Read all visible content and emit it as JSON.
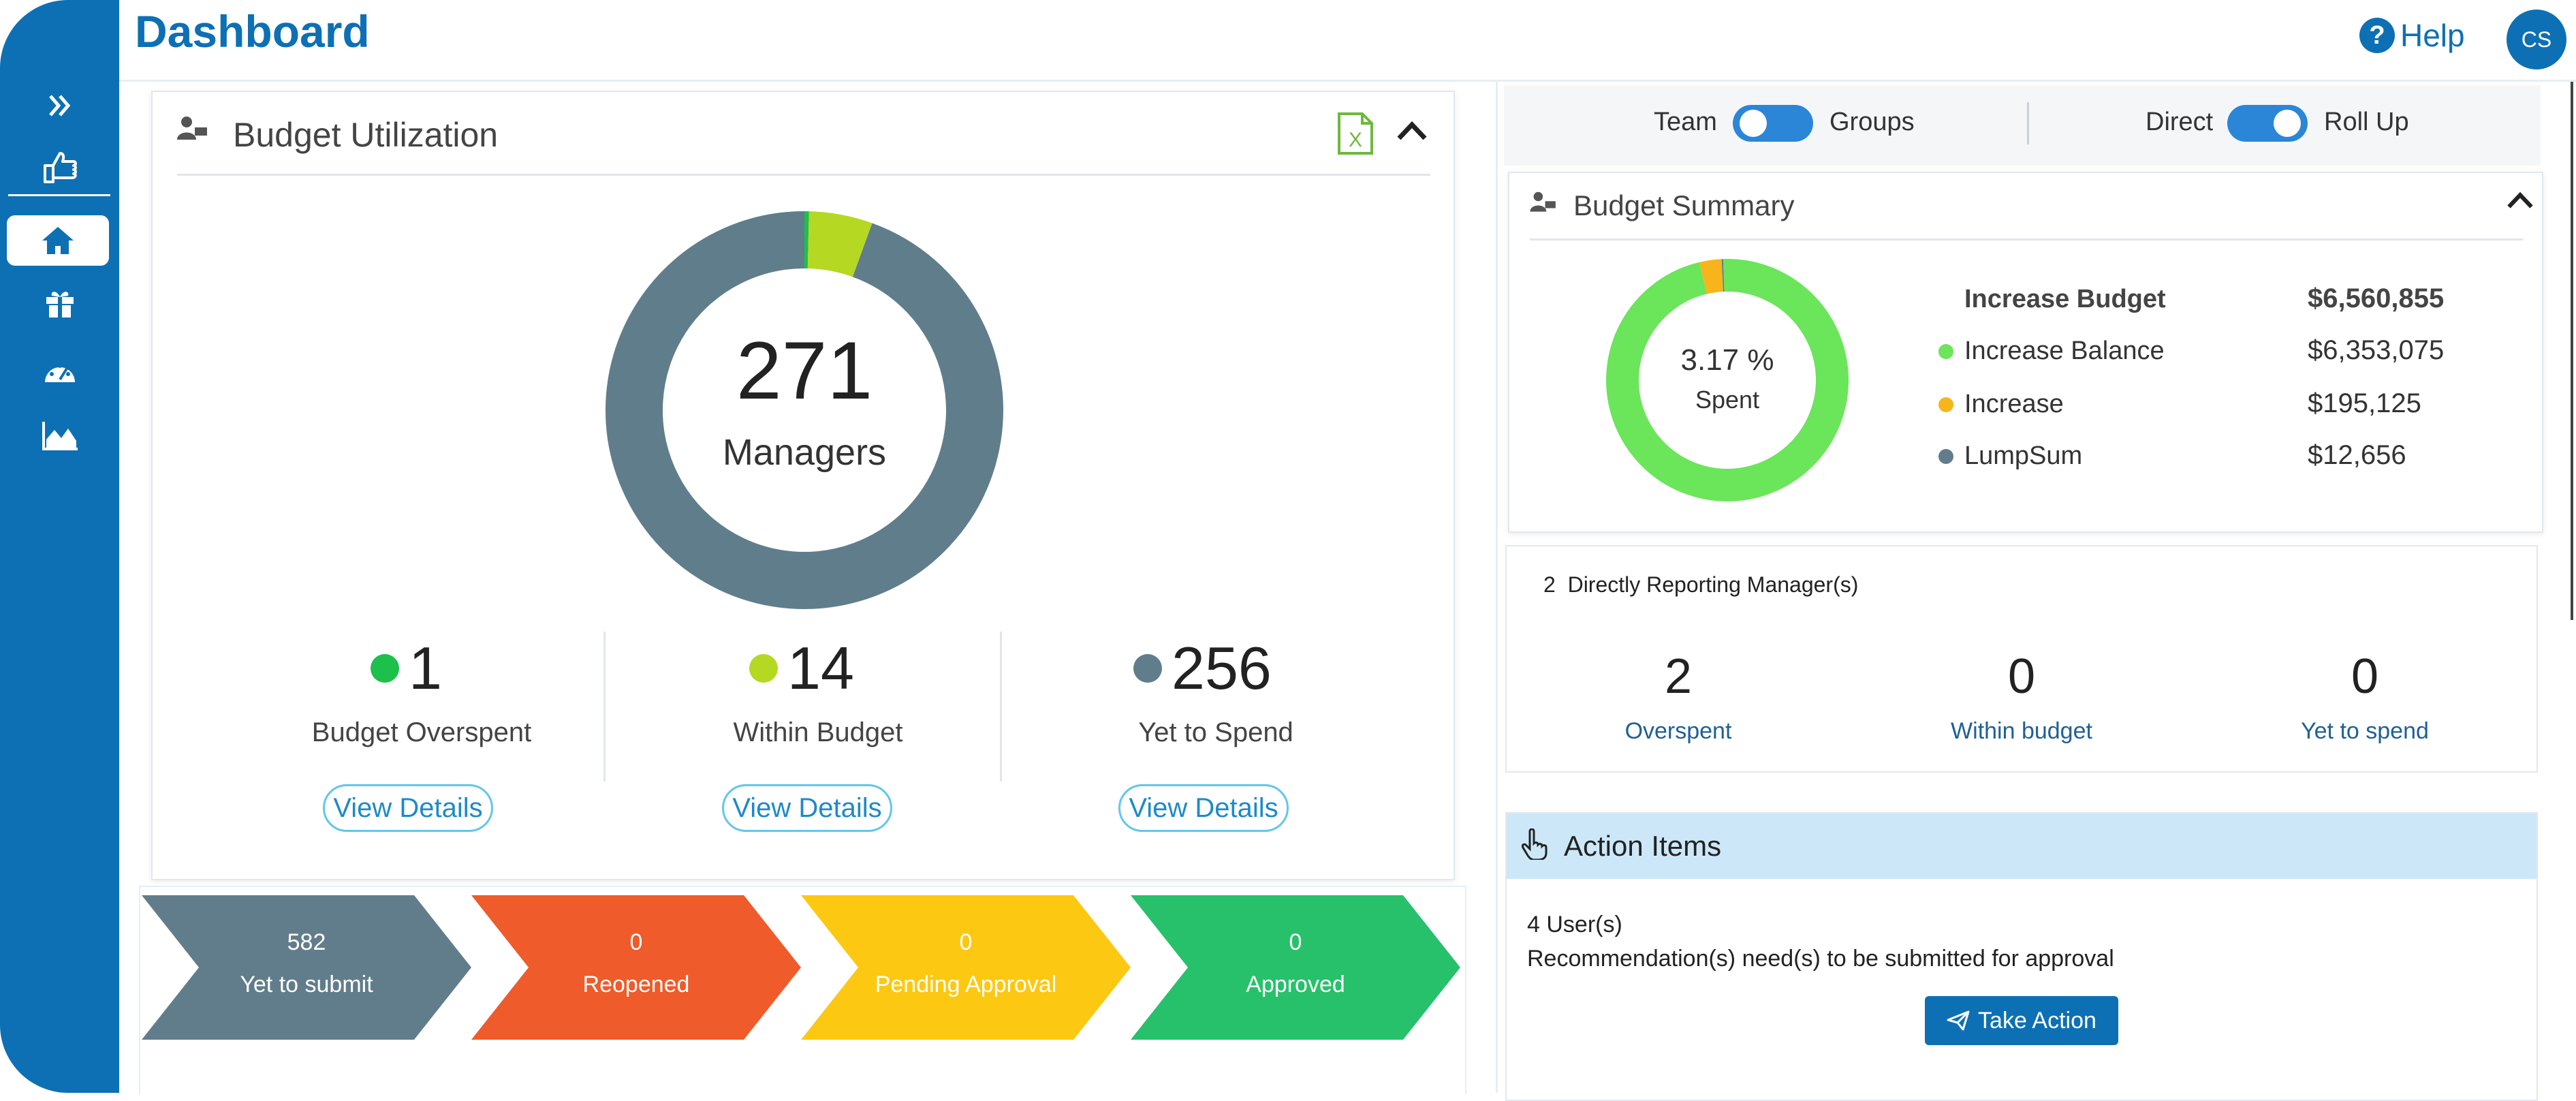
{
  "header": {
    "title": "Dashboard",
    "help_label": "Help",
    "avatar_initials": "CS"
  },
  "sidebar": {
    "items": [
      {
        "name": "expand",
        "icon": "double-chevron-right-icon"
      },
      {
        "name": "recommend",
        "icon": "thumbs-up-hand-icon"
      },
      {
        "name": "home",
        "icon": "home-icon",
        "active": true
      },
      {
        "name": "rewards",
        "icon": "gift-icon"
      },
      {
        "name": "dashboard",
        "icon": "gauge-icon"
      },
      {
        "name": "analytics",
        "icon": "area-chart-icon"
      }
    ]
  },
  "budget_utilization": {
    "title": "Budget Utilization",
    "total": "271",
    "total_label": "Managers",
    "stats": [
      {
        "value": "1",
        "label": "Budget Overspent",
        "color": "#1cc04a",
        "action": "View Details"
      },
      {
        "value": "14",
        "label": "Within Budget",
        "color": "#b5d823",
        "action": "View Details"
      },
      {
        "value": "256",
        "label": "Yet to Spend",
        "color": "#607d8b",
        "action": "View Details"
      }
    ]
  },
  "workflow": [
    {
      "count": "582",
      "label": "Yet to submit",
      "color": "#617d8b"
    },
    {
      "count": "0",
      "label": "Reopened",
      "color": "#ef5b2a"
    },
    {
      "count": "0",
      "label": "Pending Approval",
      "color": "#fdc811"
    },
    {
      "count": "0",
      "label": "Approved",
      "color": "#27c16b"
    }
  ],
  "toggles": {
    "left": {
      "off_label": "Team",
      "on_label": "Groups"
    },
    "right": {
      "off_label": "Direct",
      "on_label": "Roll Up"
    }
  },
  "budget_summary": {
    "title": "Budget Summary",
    "percent": "3.17 %",
    "percent_label": "Spent",
    "heading": {
      "label": "Increase Budget",
      "value": "$6,560,855"
    },
    "items": [
      {
        "label": "Increase Balance",
        "value": "$6,353,075",
        "color": "#6be55a"
      },
      {
        "label": "Increase",
        "value": "$195,125",
        "color": "#f7b51b"
      },
      {
        "label": "LumpSum",
        "value": "$12,656",
        "color": "#617d8b"
      }
    ]
  },
  "direct_reports": {
    "title_count": "2",
    "title": "Directly Reporting Manager(s)",
    "stats": [
      {
        "value": "2",
        "label": "Overspent"
      },
      {
        "value": "0",
        "label": "Within budget"
      },
      {
        "value": "0",
        "label": "Yet to spend"
      }
    ]
  },
  "action_items": {
    "title": "Action Items",
    "users": "4 User(s)",
    "message": "Recommendation(s) need(s) to be submitted for approval",
    "button": "Take Action"
  },
  "chart_data": [
    {
      "type": "pie",
      "title": "",
      "categories": [
        "Budget Overspent",
        "Within Budget",
        "Yet to Spend"
      ],
      "values": [
        1,
        14,
        256
      ],
      "colors": [
        "#1cc04a",
        "#b5d823",
        "#607d8b"
      ]
    },
    {
      "type": "pie",
      "title": "",
      "categories": [
        "Increase Balance",
        "Increase",
        "LumpSum"
      ],
      "values": [
        6353075,
        195125,
        12656
      ],
      "colors": [
        "#6be55a",
        "#f7b51b",
        "#617d8b"
      ]
    }
  ]
}
